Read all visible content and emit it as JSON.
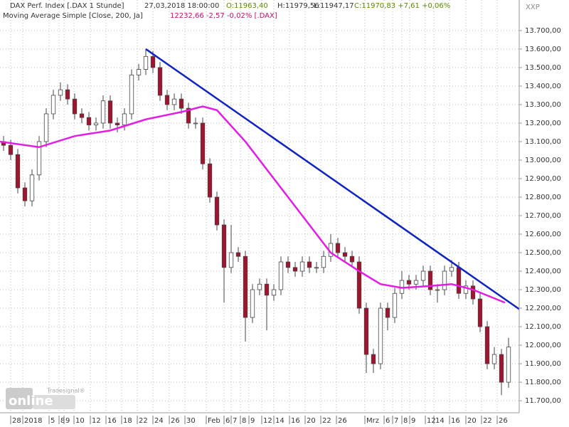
{
  "chart_data": {
    "type": "candlestick",
    "header": {
      "instrument": "DAX Perf. Index [.DAX  1 Stunde]",
      "timestamp": "27,03,2018 18:00:00",
      "open": "O:11963,40",
      "high": "H:11979,56",
      "low": "L:11947,17",
      "close": "C:11970,83 +7,61 +0,06%",
      "indicator": "Moving Average Simple [Close, 200, Ja]",
      "indicator_value": "12232,66 -2,57 -0,02% [.DAX]",
      "corner": "XXP"
    },
    "logo": {
      "brand": "Tradesignal®",
      "text": "online"
    },
    "candles": {
      "up_color": "#ffffff",
      "down_color": "#a3122e",
      "open": [
        13100,
        13080,
        13030,
        12850,
        12780,
        12920,
        13100,
        13250,
        13350,
        13380,
        13330,
        13250,
        13230,
        13190,
        13200,
        13320,
        13200,
        13190,
        13250,
        13460,
        13490,
        13560,
        13500,
        13350,
        13300,
        13330,
        13280,
        13200,
        13200,
        12980,
        12800,
        12650,
        12420,
        12500,
        12480,
        12150,
        12300,
        12330,
        12270,
        12300,
        12450,
        12420,
        12400,
        12450,
        12420,
        12420,
        12480,
        12550,
        12500,
        12480,
        12450,
        12200,
        11950,
        11900,
        12200,
        12150,
        12280,
        12350,
        12330,
        12350,
        12400,
        12300,
        12300,
        12400,
        12420,
        12280,
        12320,
        12250,
        12100,
        11900,
        11950,
        11800
      ],
      "high": [
        13130,
        13110,
        13060,
        12880,
        12950,
        13130,
        13280,
        13380,
        13420,
        13410,
        13360,
        13280,
        13260,
        13230,
        13350,
        13350,
        13230,
        13280,
        13490,
        13520,
        13600,
        13590,
        13530,
        13380,
        13360,
        13360,
        13310,
        13230,
        13230,
        13010,
        12830,
        12680,
        12650,
        12530,
        12510,
        12330,
        12360,
        12360,
        12330,
        12480,
        12480,
        12450,
        12480,
        12480,
        12450,
        12510,
        12600,
        12580,
        12530,
        12510,
        12480,
        12230,
        11980,
        12230,
        12230,
        12310,
        12400,
        12380,
        12380,
        12430,
        12430,
        12330,
        12430,
        12460,
        12450,
        12350,
        12350,
        12280,
        12130,
        11990,
        11980,
        12040
      ],
      "low": [
        13050,
        13000,
        12820,
        12750,
        12750,
        12890,
        13070,
        13220,
        13320,
        13300,
        13220,
        13200,
        13160,
        13160,
        13170,
        13170,
        13150,
        13160,
        13220,
        13430,
        13460,
        13470,
        13320,
        13270,
        13270,
        13250,
        13170,
        13170,
        12950,
        12770,
        12620,
        12230,
        12390,
        12450,
        12020,
        12120,
        12270,
        12080,
        12240,
        12270,
        12390,
        12370,
        12370,
        12390,
        12390,
        12390,
        12450,
        12470,
        12450,
        12420,
        12170,
        11850,
        11850,
        11870,
        12080,
        12120,
        12250,
        12300,
        12300,
        12320,
        12270,
        12230,
        12270,
        12370,
        12250,
        12250,
        12220,
        12070,
        11870,
        11870,
        11730,
        11770
      ],
      "close": [
        13080,
        13030,
        12850,
        12780,
        12920,
        13100,
        13250,
        13350,
        13380,
        13330,
        13250,
        13230,
        13190,
        13200,
        13320,
        13200,
        13190,
        13250,
        13460,
        13490,
        13560,
        13500,
        13350,
        13300,
        13330,
        13280,
        13200,
        13200,
        12980,
        12800,
        12650,
        12420,
        12500,
        12480,
        12150,
        12300,
        12330,
        12270,
        12300,
        12450,
        12420,
        12400,
        12450,
        12420,
        12420,
        12480,
        12550,
        12500,
        12480,
        12450,
        12200,
        11950,
        11900,
        12200,
        12150,
        12280,
        12350,
        12330,
        12350,
        12400,
        12300,
        12300,
        12400,
        12420,
        12280,
        12320,
        12250,
        12100,
        11900,
        11950,
        11800,
        11990
      ]
    },
    "moving_average": {
      "color": "#e21ee2",
      "x": [
        -0.5,
        5,
        10,
        15,
        20,
        25,
        28,
        30,
        34,
        38,
        42,
        46,
        50,
        53,
        56,
        60,
        63,
        66,
        70.5
      ],
      "values": [
        13100,
        13070,
        13130,
        13160,
        13220,
        13260,
        13290,
        13270,
        13100,
        12900,
        12700,
        12500,
        12400,
        12330,
        12310,
        12320,
        12330,
        12300,
        12230
      ]
    },
    "trendline": {
      "color": "#1024c0",
      "x": [
        20,
        72.5
      ],
      "values": [
        13600,
        12195
      ]
    },
    "xlim": [
      -0.5,
      72.5
    ],
    "ylim": [
      11635,
      13865
    ],
    "grid": true,
    "xticks": [
      {
        "value": 1,
        "label": "28"
      },
      {
        "value": 2.7,
        "label": "2018"
      },
      {
        "value": 6.4,
        "label": "5"
      },
      {
        "value": 7.8,
        "label": "8"
      },
      {
        "value": 8.5,
        "label": "9"
      },
      {
        "value": 9.9,
        "label": "10"
      },
      {
        "value": 12.2,
        "label": "12"
      },
      {
        "value": 14.4,
        "label": "16"
      },
      {
        "value": 16.6,
        "label": "18"
      },
      {
        "value": 18.8,
        "label": "22"
      },
      {
        "value": 21,
        "label": "24"
      },
      {
        "value": 23.3,
        "label": "26"
      },
      {
        "value": 25.5,
        "label": "30"
      },
      {
        "value": 28.5,
        "label": "Feb"
      },
      {
        "value": 31,
        "label": "6"
      },
      {
        "value": 32,
        "label": "7"
      },
      {
        "value": 33.3,
        "label": "8"
      },
      {
        "value": 34.5,
        "label": "9"
      },
      {
        "value": 36.3,
        "label": "12"
      },
      {
        "value": 38,
        "label": "14"
      },
      {
        "value": 40.2,
        "label": "16"
      },
      {
        "value": 42.4,
        "label": "20"
      },
      {
        "value": 44.6,
        "label": "22"
      },
      {
        "value": 46.8,
        "label": "26"
      },
      {
        "value": 50.8,
        "label": "Mrz"
      },
      {
        "value": 53.5,
        "label": "6"
      },
      {
        "value": 54.7,
        "label": "7"
      },
      {
        "value": 56,
        "label": "8"
      },
      {
        "value": 57.1,
        "label": "9"
      },
      {
        "value": 59.3,
        "label": "12"
      },
      {
        "value": 60.5,
        "label": "14"
      },
      {
        "value": 62.7,
        "label": "16"
      },
      {
        "value": 65,
        "label": "20"
      },
      {
        "value": 67.2,
        "label": "22"
      },
      {
        "value": 69.4,
        "label": "26"
      }
    ],
    "yticks": [
      {
        "value": 11700,
        "label": "11.700,00"
      },
      {
        "value": 11800,
        "label": "11.800,00"
      },
      {
        "value": 11900,
        "label": "11.900,00"
      },
      {
        "value": 12000,
        "label": "12.000,00"
      },
      {
        "value": 12100,
        "label": "12.100,00"
      },
      {
        "value": 12200,
        "label": "12.200,00"
      },
      {
        "value": 12300,
        "label": "12.300,00"
      },
      {
        "value": 12400,
        "label": "12.400,00"
      },
      {
        "value": 12500,
        "label": "12.500,00"
      },
      {
        "value": 12600,
        "label": "12.600,00"
      },
      {
        "value": 12700,
        "label": "12.700,00"
      },
      {
        "value": 12800,
        "label": "12.800,00"
      },
      {
        "value": 12900,
        "label": "12.900,00"
      },
      {
        "value": 13000,
        "label": "13.000,00"
      },
      {
        "value": 13100,
        "label": "13.100,00"
      },
      {
        "value": 13200,
        "label": "13.200,00"
      },
      {
        "value": 13300,
        "label": "13.300,00"
      },
      {
        "value": 13400,
        "label": "13.400,00"
      },
      {
        "value": 13500,
        "label": "13.500,00"
      },
      {
        "value": 13600,
        "label": "13.600,00"
      },
      {
        "value": 13700,
        "label": "13.700,00"
      }
    ]
  }
}
